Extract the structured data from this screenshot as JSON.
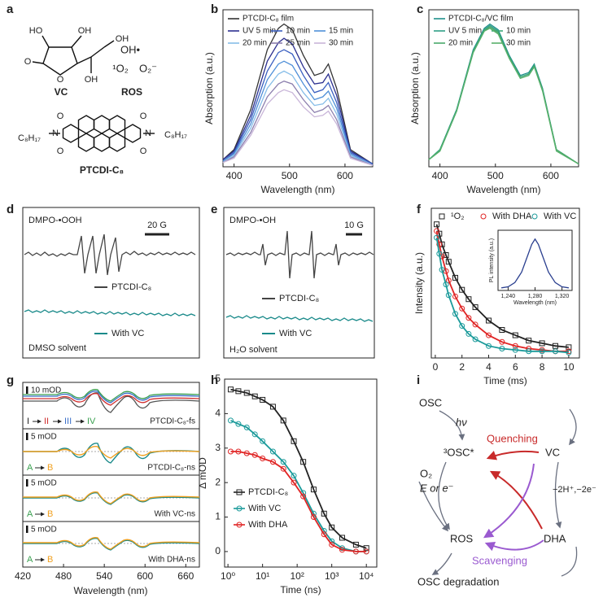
{
  "panel_labels": [
    "a",
    "b",
    "c",
    "d",
    "e",
    "f",
    "g",
    "h",
    "i"
  ],
  "panel_a": {
    "vc_atoms": [
      "HO",
      "OH",
      "O",
      "O",
      "OH",
      "OH"
    ],
    "vc_label": "VC",
    "ros": [
      "OH•",
      "¹O₂",
      "O₂⁻"
    ],
    "ros_label": "ROS",
    "ptcdi_atoms": [
      "C₈H₁₇",
      "N",
      "N",
      "C₈H₁₇",
      "O",
      "O",
      "O",
      "O"
    ],
    "ptcdi_label": "PTCDI-C₈"
  },
  "panel_d": {
    "title": "DMPO-•OOH",
    "scale": "20 G",
    "legend": [
      "PTCDI-C₈",
      "With VC"
    ],
    "note": "DMSO solvent"
  },
  "panel_e": {
    "title": "DMPO-•OH",
    "scale": "10 G",
    "legend": [
      "PTCDI-C₈",
      "With VC"
    ],
    "note": "H₂O solvent"
  },
  "panel_g": {
    "xlabel": "Wavelength (nm)",
    "xlim": [
      420,
      680
    ],
    "xticks": [
      420,
      480,
      540,
      600,
      660
    ],
    "rows": [
      {
        "scale": "10 mOD",
        "sequence": [
          "I",
          "II",
          "III",
          "IV"
        ],
        "label": "PTCDI-C₈-fs"
      },
      {
        "scale": "5 mOD",
        "sequence": [
          "A",
          "B"
        ],
        "label": "PTCDI-C₈-ns"
      },
      {
        "scale": "5 mOD",
        "sequence": [
          "A",
          "B"
        ],
        "label": "With VC-ns"
      },
      {
        "scale": "5 mOD",
        "sequence": [
          "A",
          "B"
        ],
        "label": "With DHA-ns"
      }
    ]
  },
  "panel_i": {
    "nodes": [
      "OSC",
      "³OSC*",
      "ROS",
      "OSC degradation",
      "VC",
      "DHA"
    ],
    "edges": [
      "hν",
      "Quenching",
      "O₂",
      "E or e⁻",
      "−2H⁺,−2e⁻",
      "Scavenging"
    ]
  },
  "chart_data": [
    {
      "type": "line",
      "xlabel": "Wavelength (nm)",
      "ylabel": "Absorption (a.u.)",
      "x": [
        380,
        400,
        430,
        460,
        480,
        490,
        505,
        525,
        545,
        560,
        570,
        585,
        610,
        650
      ],
      "xlim": [
        380,
        650
      ],
      "xticks": [
        400,
        500,
        600
      ],
      "ylim": [
        0,
        1.1
      ],
      "series": [
        {
          "name": "PTCDI-C₈ film",
          "color": "#333333",
          "values": [
            0.05,
            0.12,
            0.4,
            0.82,
            0.97,
            1.0,
            0.96,
            0.78,
            0.64,
            0.66,
            0.72,
            0.55,
            0.12,
            0.02
          ]
        },
        {
          "name": "UV 5 min",
          "color": "#2b2f8f",
          "values": [
            0.05,
            0.11,
            0.36,
            0.74,
            0.87,
            0.9,
            0.86,
            0.7,
            0.58,
            0.59,
            0.65,
            0.5,
            0.11,
            0.02
          ]
        },
        {
          "name": "10 min",
          "color": "#3a5fc0",
          "values": [
            0.04,
            0.1,
            0.33,
            0.67,
            0.8,
            0.82,
            0.79,
            0.64,
            0.52,
            0.54,
            0.59,
            0.45,
            0.1,
            0.02
          ]
        },
        {
          "name": "15 min",
          "color": "#4f8fd8",
          "values": [
            0.04,
            0.09,
            0.3,
            0.61,
            0.72,
            0.74,
            0.71,
            0.58,
            0.47,
            0.49,
            0.53,
            0.41,
            0.09,
            0.01
          ]
        },
        {
          "name": "20 min",
          "color": "#86bde8",
          "values": [
            0.03,
            0.08,
            0.27,
            0.55,
            0.65,
            0.67,
            0.64,
            0.52,
            0.43,
            0.44,
            0.48,
            0.37,
            0.08,
            0.01
          ]
        },
        {
          "name": "25 min",
          "color": "#8c7fae",
          "values": [
            0.03,
            0.07,
            0.24,
            0.49,
            0.58,
            0.6,
            0.58,
            0.47,
            0.38,
            0.4,
            0.43,
            0.33,
            0.07,
            0.01
          ]
        },
        {
          "name": "30 min",
          "color": "#c9b6d9",
          "values": [
            0.03,
            0.06,
            0.22,
            0.44,
            0.52,
            0.54,
            0.52,
            0.42,
            0.35,
            0.36,
            0.39,
            0.3,
            0.06,
            0.01
          ]
        }
      ]
    },
    {
      "type": "line",
      "xlabel": "Wavelength (nm)",
      "ylabel": "Absorption (a.u.)",
      "x": [
        380,
        400,
        430,
        460,
        480,
        490,
        505,
        525,
        545,
        560,
        570,
        585,
        610,
        650
      ],
      "xlim": [
        380,
        650
      ],
      "xticks": [
        400,
        500,
        600
      ],
      "ylim": [
        0,
        1.1
      ],
      "series": [
        {
          "name": "PTCDI-C₈/VC film",
          "color": "#1f8f8a",
          "values": [
            0.05,
            0.12,
            0.4,
            0.82,
            0.97,
            1.0,
            0.96,
            0.78,
            0.64,
            0.66,
            0.72,
            0.55,
            0.12,
            0.02
          ]
        },
        {
          "name": "UV 5 min",
          "color": "#2e9e86",
          "values": [
            0.05,
            0.12,
            0.4,
            0.81,
            0.96,
            0.99,
            0.95,
            0.77,
            0.63,
            0.65,
            0.71,
            0.54,
            0.12,
            0.02
          ]
        },
        {
          "name": "10 min",
          "color": "#3aa87a",
          "values": [
            0.05,
            0.12,
            0.39,
            0.81,
            0.96,
            0.98,
            0.94,
            0.77,
            0.63,
            0.65,
            0.71,
            0.54,
            0.12,
            0.02
          ]
        },
        {
          "name": "20 min",
          "color": "#4aa86a",
          "values": [
            0.05,
            0.11,
            0.39,
            0.8,
            0.95,
            0.98,
            0.94,
            0.76,
            0.62,
            0.64,
            0.7,
            0.54,
            0.12,
            0.02
          ]
        },
        {
          "name": "30 min",
          "color": "#58b06a",
          "values": [
            0.05,
            0.11,
            0.39,
            0.8,
            0.95,
            0.97,
            0.93,
            0.76,
            0.62,
            0.64,
            0.7,
            0.53,
            0.11,
            0.02
          ]
        }
      ]
    },
    {
      "type": "scatter",
      "xlabel": "Time (ms)",
      "ylabel": "Intensity (a.u.)",
      "x": [
        0.1,
        0.3,
        0.5,
        0.8,
        1,
        1.5,
        2,
        2.5,
        3,
        4,
        5,
        6,
        7,
        8,
        9,
        10
      ],
      "xlim": [
        -0.3,
        10.8
      ],
      "xticks": [
        0,
        2,
        4,
        6,
        8,
        10
      ],
      "ylim": [
        0,
        1.12
      ],
      "series": [
        {
          "name": "¹O₂",
          "color": "#222222",
          "marker": "square",
          "values": [
            1.0,
            0.93,
            0.85,
            0.77,
            0.72,
            0.6,
            0.51,
            0.44,
            0.38,
            0.28,
            0.21,
            0.17,
            0.13,
            0.11,
            0.09,
            0.08
          ]
        },
        {
          "name": "With DHA",
          "color": "#e02424",
          "marker": "circle",
          "values": [
            0.95,
            0.85,
            0.76,
            0.65,
            0.58,
            0.46,
            0.37,
            0.3,
            0.25,
            0.17,
            0.12,
            0.09,
            0.07,
            0.06,
            0.05,
            0.05
          ]
        },
        {
          "name": "With VC",
          "color": "#1a9a9a",
          "marker": "circle",
          "values": [
            0.9,
            0.78,
            0.66,
            0.55,
            0.47,
            0.33,
            0.24,
            0.18,
            0.14,
            0.09,
            0.07,
            0.06,
            0.05,
            0.05,
            0.05,
            0.04
          ]
        }
      ]
    },
    {
      "type": "line",
      "xlabel": "Wavelength (nm)",
      "ylabel": "PL intensity (a.u.)",
      "x": [
        1230,
        1240,
        1250,
        1260,
        1270,
        1275,
        1280,
        1285,
        1290,
        1300,
        1310,
        1320,
        1330
      ],
      "xlim": [
        1225,
        1335
      ],
      "xticks": [
        {
          "value": 1240,
          "label": "1,240"
        },
        {
          "value": 1280,
          "label": "1,280"
        },
        {
          "value": 1320,
          "label": "1,320"
        }
      ],
      "ylim": [
        0,
        1.15
      ],
      "series": [
        {
          "color": "#2a3f8f",
          "values": [
            0.05,
            0.07,
            0.15,
            0.35,
            0.7,
            0.88,
            0.98,
            0.88,
            0.7,
            0.35,
            0.15,
            0.07,
            0.05
          ]
        }
      ]
    },
    {
      "type": "scatter",
      "log_x": true,
      "xlabel": "Time (ns)",
      "ylabel": "Δ mOD",
      "x": [
        1.2,
        2,
        3.5,
        6,
        10,
        20,
        40,
        80,
        150,
        300,
        600,
        1000,
        2000,
        5000,
        10000
      ],
      "xlim": [
        0.8,
        20000
      ],
      "xticks": [
        {
          "value": 1,
          "label": "10⁰"
        },
        {
          "value": 10,
          "label": "10¹"
        },
        {
          "value": 100,
          "label": "10²"
        },
        {
          "value": 1000,
          "label": "10³"
        },
        {
          "value": 10000,
          "label": "10⁴"
        }
      ],
      "ylim": [
        -0.45,
        5
      ],
      "yticks": [
        0,
        1,
        2,
        3,
        4,
        5
      ],
      "series": [
        {
          "name": "PTCDI-C₈",
          "color": "#222222",
          "marker": "square",
          "values": [
            4.7,
            4.65,
            4.6,
            4.5,
            4.4,
            4.2,
            3.8,
            3.2,
            2.6,
            1.8,
            1.1,
            0.7,
            0.4,
            0.2,
            0.1
          ]
        },
        {
          "name": "With VC",
          "color": "#1a9a9a",
          "marker": "circle",
          "values": [
            3.8,
            3.7,
            3.6,
            3.4,
            3.2,
            2.9,
            2.6,
            2.2,
            1.7,
            1.1,
            0.6,
            0.3,
            0.1,
            0,
            0
          ]
        },
        {
          "name": "With DHA",
          "color": "#e02424",
          "marker": "circle",
          "values": [
            2.9,
            2.9,
            2.85,
            2.8,
            2.7,
            2.6,
            2.4,
            2.0,
            1.6,
            1.0,
            0.5,
            0.2,
            0.05,
            0,
            0
          ]
        }
      ]
    }
  ]
}
